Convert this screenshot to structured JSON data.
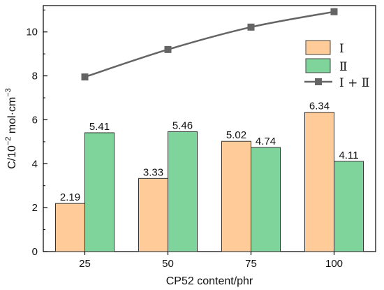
{
  "chart_data": {
    "type": "bar",
    "categories": [
      "25",
      "50",
      "75",
      "100"
    ],
    "series": [
      {
        "name": "Ⅰ",
        "values": [
          2.19,
          3.33,
          5.02,
          6.34
        ],
        "color": "#FFCC99"
      },
      {
        "name": "Ⅱ",
        "values": [
          5.41,
          5.46,
          4.74,
          4.11
        ],
        "color": "#7FD49C"
      },
      {
        "name": "Ⅰ + Ⅱ",
        "type": "line",
        "values": [
          7.95,
          9.2,
          10.22,
          10.92
        ],
        "color": "#646464",
        "marker": "square"
      }
    ],
    "data_labels": {
      "Ⅰ": [
        "2.19",
        "3.33",
        "5.02",
        "6.34"
      ],
      "Ⅱ": [
        "5.41",
        "5.46",
        "4.74",
        "4.11"
      ]
    },
    "xlabel": "CP52 content/phr",
    "ylabel": {
      "prefix": "C/10",
      "exponent": "−2",
      "middle": " mol·cm",
      "exponent2": "−3"
    },
    "ylim": [
      0,
      11.2
    ],
    "yticks": [
      "0",
      "2",
      "4",
      "6",
      "8",
      "10"
    ],
    "grid": false,
    "legend": "top-right"
  }
}
